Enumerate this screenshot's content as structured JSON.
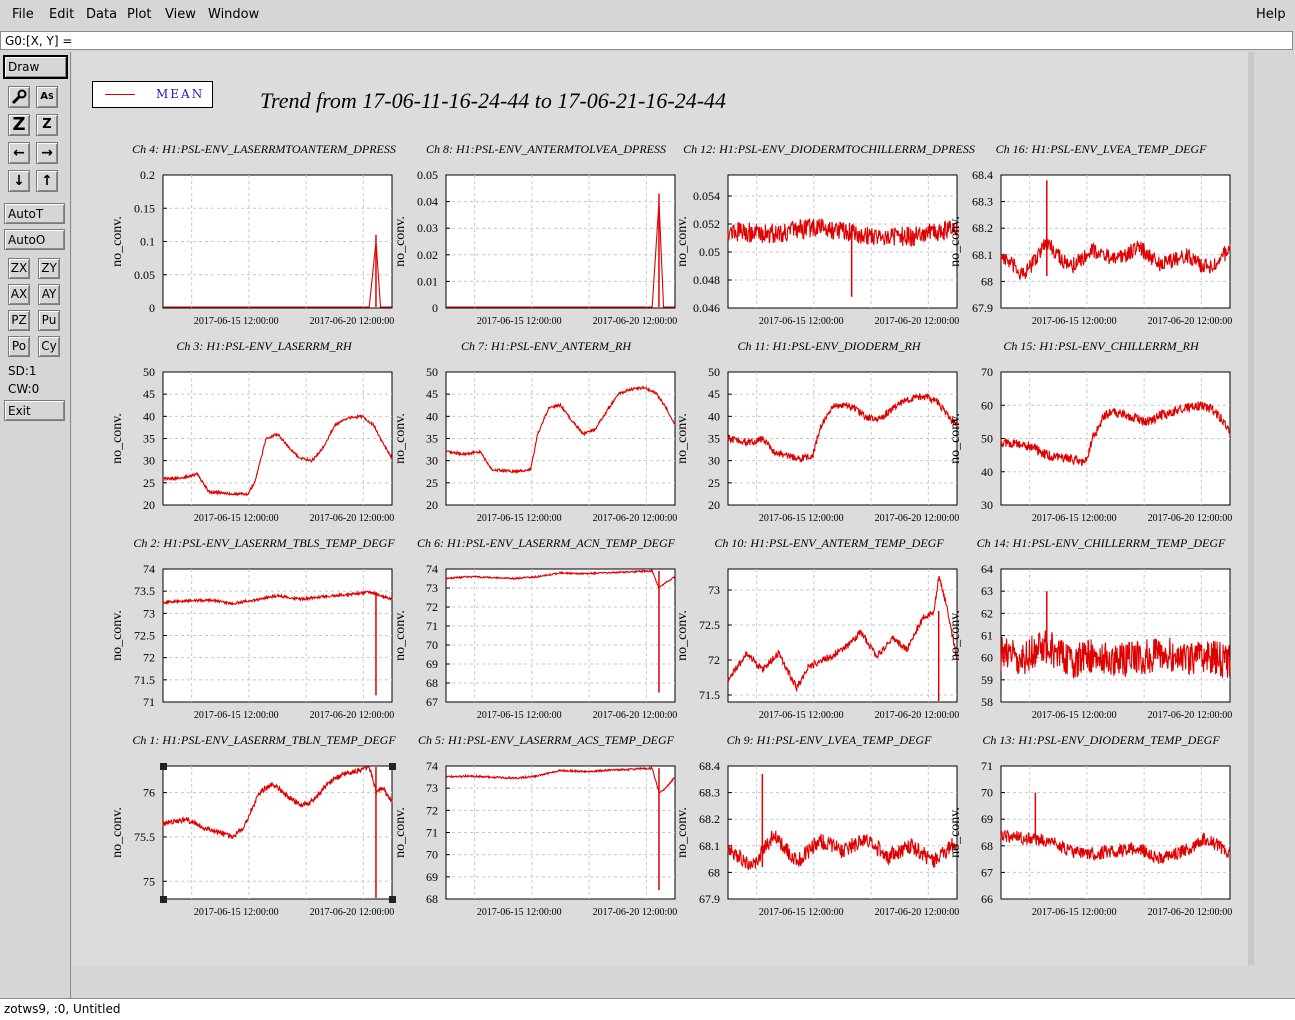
{
  "menu": {
    "items": [
      {
        "label": "File"
      },
      {
        "label": "Edit"
      },
      {
        "label": "Data"
      },
      {
        "label": "Plot"
      },
      {
        "label": "View"
      },
      {
        "label": "Window"
      }
    ],
    "help": "Help"
  },
  "coord_readout": "G0:[X, Y] =",
  "toolbar": {
    "draw": "Draw",
    "icon_names": [
      "wrench-icon",
      "text-size-icon",
      "zoom-z-large-icon",
      "zoom-z-small-icon",
      "arrow-left-icon",
      "arrow-right-icon",
      "arrow-down-icon",
      "arrow-up-icon"
    ],
    "autot": "AutoT",
    "autoo": "AutoO",
    "pairs": [
      [
        "ZX",
        "ZY"
      ],
      [
        "AX",
        "AY"
      ],
      [
        "PZ",
        "Pu"
      ],
      [
        "Po",
        "Cy"
      ]
    ],
    "sd": "SD:1",
    "cw": "CW:0",
    "exit": "Exit"
  },
  "legend": {
    "label": "MEAN",
    "color": "#e00000"
  },
  "title": "Trend from 17-06-11-16-24-44 to 17-06-21-16-24-44",
  "status": "zotws9, :0, Untitled",
  "chart_data": [
    {
      "type": "line",
      "title": "Ch 4: H1:PSL-ENV_LASERRMTOANTERM_DPRESS",
      "ylabel": "no_conv.",
      "yticks": [
        "0",
        "0.05",
        "0.1",
        "0.15",
        "0.2"
      ],
      "ylim": [
        0,
        0.2
      ],
      "xticks": [
        "2017-06-15 12:00:00",
        "2017-06-20 12:00:00"
      ],
      "x": [
        0,
        0.6,
        0.9,
        0.93,
        0.95,
        1
      ],
      "y": [
        0,
        0,
        0,
        0.1,
        0,
        0
      ],
      "spike": {
        "x": 0.93,
        "y": 0.11
      },
      "noise": 0
    },
    {
      "type": "line",
      "title": "Ch 8: H1:PSL-ENV_ANTERMTOLVEA_DPRESS",
      "ylabel": "no_conv.",
      "yticks": [
        "0",
        "0.01",
        "0.02",
        "0.03",
        "0.04",
        "0.05"
      ],
      "ylim": [
        0,
        0.05
      ],
      "xticks": [
        "2017-06-15 12:00:00",
        "2017-06-20 12:00:00"
      ],
      "x": [
        0,
        0.6,
        0.9,
        0.93,
        0.95,
        1
      ],
      "y": [
        0,
        0,
        0,
        0.04,
        0,
        0
      ],
      "spike": {
        "x": 0.93,
        "y": 0.043
      },
      "noise": 0
    },
    {
      "type": "line",
      "title": "Ch 12: H1:PSL-ENV_DIODERMTOCHILLERRM_DPRESS",
      "ylabel": "no_conv.",
      "yticks": [
        "0.046",
        "0.048",
        "0.05",
        "0.052",
        "0.054"
      ],
      "ylim": [
        0.046,
        0.0555
      ],
      "xticks": [
        "2017-06-15 12:00:00",
        "2017-06-20 12:00:00"
      ],
      "x": [
        0,
        0.2,
        0.4,
        0.6,
        0.8,
        1
      ],
      "y": [
        0.0515,
        0.0513,
        0.0518,
        0.0512,
        0.0511,
        0.0517
      ],
      "spike": {
        "x": 0.54,
        "y": 0.0468
      },
      "noise": 0.0007
    },
    {
      "type": "line",
      "title": "Ch 16: H1:PSL-ENV_LVEA_TEMP_DEGF",
      "ylabel": "no_conv.",
      "yticks": [
        "67.9",
        "68",
        "68.1",
        "68.2",
        "68.3",
        "68.4"
      ],
      "ylim": [
        67.9,
        68.4
      ],
      "xticks": [
        "2017-06-15 12:00:00",
        "2017-06-20 12:00:00"
      ],
      "x": [
        0,
        0.1,
        0.2,
        0.3,
        0.4,
        0.5,
        0.6,
        0.7,
        0.8,
        0.9,
        1
      ],
      "y": [
        68.1,
        68.02,
        68.15,
        68.05,
        68.12,
        68.08,
        68.13,
        68.06,
        68.1,
        68.05,
        68.12
      ],
      "spike": {
        "x": 0.2,
        "y": 68.38
      },
      "noise": 0.03
    },
    {
      "type": "line",
      "title": "Ch 3: H1:PSL-ENV_LASERRM_RH",
      "ylabel": "no_conv.",
      "yticks": [
        "20",
        "25",
        "30",
        "35",
        "40",
        "45",
        "50"
      ],
      "ylim": [
        20,
        50
      ],
      "xticks": [
        "2017-06-15 12:00:00",
        "2017-06-20 12:00:00"
      ],
      "x": [
        0,
        0.08,
        0.15,
        0.2,
        0.3,
        0.37,
        0.4,
        0.45,
        0.5,
        0.55,
        0.6,
        0.65,
        0.7,
        0.75,
        0.8,
        0.87,
        0.92,
        0.96,
        1
      ],
      "y": [
        26,
        26,
        27,
        23,
        22.5,
        22.5,
        25,
        35,
        36,
        33,
        30.5,
        30,
        33,
        38,
        39.5,
        40,
        38,
        34,
        30.5
      ],
      "noise": 0.3
    },
    {
      "type": "line",
      "title": "Ch 7: H1:PSL-ENV_ANTERM_RH",
      "ylabel": "no_conv.",
      "yticks": [
        "20",
        "25",
        "30",
        "35",
        "40",
        "45",
        "50"
      ],
      "ylim": [
        20,
        50
      ],
      "xticks": [
        "2017-06-15 12:00:00",
        "2017-06-20 12:00:00"
      ],
      "x": [
        0,
        0.08,
        0.15,
        0.2,
        0.3,
        0.37,
        0.4,
        0.45,
        0.5,
        0.55,
        0.6,
        0.65,
        0.7,
        0.75,
        0.8,
        0.87,
        0.92,
        0.96,
        1
      ],
      "y": [
        32,
        31.5,
        32,
        28,
        27.5,
        28,
        36,
        42,
        42.5,
        39,
        36,
        37,
        41,
        45,
        46,
        46.5,
        45,
        42,
        38
      ],
      "noise": 0.3
    },
    {
      "type": "line",
      "title": "Ch 11: H1:PSL-ENV_DIODERM_RH",
      "ylabel": "no_conv.",
      "yticks": [
        "20",
        "25",
        "30",
        "35",
        "40",
        "45",
        "50"
      ],
      "ylim": [
        20,
        50
      ],
      "xticks": [
        "2017-06-15 12:00:00",
        "2017-06-20 12:00:00"
      ],
      "x": [
        0,
        0.1,
        0.15,
        0.2,
        0.3,
        0.37,
        0.4,
        0.45,
        0.5,
        0.55,
        0.6,
        0.65,
        0.7,
        0.75,
        0.8,
        0.87,
        0.92,
        0.96,
        1
      ],
      "y": [
        35,
        34,
        35,
        32,
        30.5,
        31,
        37,
        42,
        42.5,
        42,
        40,
        39,
        41,
        43,
        44,
        44.5,
        43,
        40,
        38
      ],
      "noise": 0.8
    },
    {
      "type": "line",
      "title": "Ch 15: H1:PSL-ENV_CHILLERRM_RH",
      "ylabel": "no_conv.",
      "yticks": [
        "30",
        "40",
        "50",
        "60",
        "70"
      ],
      "ylim": [
        30,
        70
      ],
      "xticks": [
        "2017-06-15 12:00:00",
        "2017-06-20 12:00:00"
      ],
      "x": [
        0,
        0.1,
        0.15,
        0.2,
        0.3,
        0.37,
        0.4,
        0.45,
        0.5,
        0.55,
        0.6,
        0.65,
        0.7,
        0.75,
        0.8,
        0.87,
        0.92,
        0.96,
        1
      ],
      "y": [
        49,
        48,
        47,
        45,
        44,
        43,
        50,
        57,
        58,
        57,
        56,
        55,
        57,
        58,
        59,
        60,
        59,
        56,
        52
      ],
      "noise": 1.5
    },
    {
      "type": "line",
      "title": "Ch 2: H1:PSL-ENV_LASERRM_TBLS_TEMP_DEGF",
      "ylabel": "no_conv.",
      "yticks": [
        "71",
        "71.5",
        "72",
        "72.5",
        "73",
        "73.5",
        "74"
      ],
      "ylim": [
        71,
        74
      ],
      "xticks": [
        "2017-06-15 12:00:00",
        "2017-06-20 12:00:00"
      ],
      "x": [
        0,
        0.1,
        0.2,
        0.3,
        0.4,
        0.5,
        0.6,
        0.7,
        0.8,
        0.9,
        0.95,
        1
      ],
      "y": [
        73.25,
        73.28,
        73.3,
        73.22,
        73.3,
        73.4,
        73.32,
        73.38,
        73.42,
        73.48,
        73.4,
        73.32
      ],
      "spike": {
        "x": 0.93,
        "y": 71.15
      },
      "noise": 0.03
    },
    {
      "type": "line",
      "title": "Ch 6: H1:PSL-ENV_LASERRM_ACN_TEMP_DEGF",
      "ylabel": "no_conv.",
      "yticks": [
        "67",
        "68",
        "69",
        "70",
        "71",
        "72",
        "73",
        "74"
      ],
      "ylim": [
        67,
        74
      ],
      "xticks": [
        "2017-06-15 12:00:00",
        "2017-06-20 12:00:00"
      ],
      "x": [
        0,
        0.1,
        0.2,
        0.3,
        0.4,
        0.5,
        0.6,
        0.7,
        0.8,
        0.9,
        0.93,
        0.96,
        1
      ],
      "y": [
        73.5,
        73.6,
        73.55,
        73.5,
        73.6,
        73.8,
        73.75,
        73.8,
        73.85,
        73.9,
        73.0,
        73.3,
        73.6
      ],
      "spike": {
        "x": 0.93,
        "y": 67.5
      },
      "noise": 0.04
    },
    {
      "type": "line",
      "title": "Ch 10: H1:PSL-ENV_ANTERM_TEMP_DEGF",
      "ylabel": "no_conv.",
      "yticks": [
        "71.5",
        "72",
        "72.5",
        "73"
      ],
      "ylim": [
        71.4,
        73.3
      ],
      "xticks": [
        "2017-06-15 12:00:00",
        "2017-06-20 12:00:00"
      ],
      "x": [
        0,
        0.08,
        0.15,
        0.22,
        0.3,
        0.35,
        0.45,
        0.52,
        0.58,
        0.65,
        0.72,
        0.78,
        0.85,
        0.9,
        0.92,
        0.96,
        1
      ],
      "y": [
        71.7,
        72.1,
        71.85,
        72.1,
        71.6,
        71.9,
        72.05,
        72.2,
        72.4,
        72.05,
        72.3,
        72.15,
        72.6,
        72.7,
        73.2,
        72.7,
        72.0
      ],
      "spike": {
        "x": 0.92,
        "y": 71.4
      },
      "noise": 0.05
    },
    {
      "type": "line",
      "title": "Ch 14: H1:PSL-ENV_CHILLERRM_TEMP_DEGF",
      "ylabel": "no_conv.",
      "yticks": [
        "58",
        "59",
        "60",
        "61",
        "62",
        "63",
        "64"
      ],
      "ylim": [
        58,
        64
      ],
      "xticks": [
        "2017-06-15 12:00:00",
        "2017-06-20 12:00:00"
      ],
      "x": [
        0,
        0.1,
        0.2,
        0.3,
        0.4,
        0.5,
        0.6,
        0.7,
        0.8,
        0.9,
        1
      ],
      "y": [
        60.2,
        60.0,
        60.5,
        59.8,
        60.1,
        59.9,
        60.0,
        60.2,
        60.0,
        60.1,
        59.8
      ],
      "spike": {
        "x": 0.2,
        "y": 63.0
      },
      "noise": 0.8
    },
    {
      "type": "line",
      "title": "Ch 1: H1:PSL-ENV_LASERRM_TBLN_TEMP_DEGF",
      "ylabel": "no_conv.",
      "yticks": [
        "75",
        "75.5",
        "76"
      ],
      "ylim": [
        74.8,
        76.3
      ],
      "xticks": [
        "2017-06-15 12:00:00",
        "2017-06-20 12:00:00"
      ],
      "x": [
        0,
        0.1,
        0.18,
        0.25,
        0.3,
        0.35,
        0.42,
        0.48,
        0.55,
        0.6,
        0.65,
        0.72,
        0.78,
        0.85,
        0.9,
        0.93,
        0.96,
        1
      ],
      "y": [
        75.65,
        75.7,
        75.6,
        75.55,
        75.5,
        75.6,
        76.0,
        76.1,
        75.95,
        75.85,
        75.9,
        76.1,
        76.2,
        76.25,
        76.3,
        76.0,
        76.05,
        75.9
      ],
      "spike": {
        "x": 0.93,
        "y": 74.8
      },
      "noise": 0.03
    },
    {
      "type": "line",
      "title": "Ch 5: H1:PSL-ENV_LASERRM_ACS_TEMP_DEGF",
      "ylabel": "no_conv.",
      "yticks": [
        "68",
        "69",
        "70",
        "71",
        "72",
        "73",
        "74"
      ],
      "ylim": [
        68,
        74
      ],
      "xticks": [
        "2017-06-15 12:00:00",
        "2017-06-20 12:00:00"
      ],
      "x": [
        0,
        0.1,
        0.2,
        0.3,
        0.4,
        0.5,
        0.6,
        0.7,
        0.8,
        0.9,
        0.93,
        0.96,
        1
      ],
      "y": [
        73.5,
        73.55,
        73.5,
        73.45,
        73.55,
        73.8,
        73.75,
        73.8,
        73.85,
        73.9,
        72.8,
        73.0,
        73.5
      ],
      "spike": {
        "x": 0.93,
        "y": 68.4
      },
      "noise": 0.04
    },
    {
      "type": "line",
      "title": "Ch 9: H1:PSL-ENV_LVEA_TEMP_DEGF",
      "ylabel": "no_conv.",
      "yticks": [
        "67.9",
        "68",
        "68.1",
        "68.2",
        "68.3",
        "68.4"
      ],
      "ylim": [
        67.9,
        68.4
      ],
      "xticks": [
        "2017-06-15 12:00:00",
        "2017-06-20 12:00:00"
      ],
      "x": [
        0,
        0.1,
        0.2,
        0.3,
        0.4,
        0.5,
        0.6,
        0.7,
        0.8,
        0.9,
        1
      ],
      "y": [
        68.1,
        68.02,
        68.14,
        68.04,
        68.12,
        68.08,
        68.13,
        68.06,
        68.1,
        68.04,
        68.12
      ],
      "spike": {
        "x": 0.15,
        "y": 68.37
      },
      "noise": 0.03
    },
    {
      "type": "line",
      "title": "Ch 13: H1:PSL-ENV_DIODERM_TEMP_DEGF",
      "ylabel": "no_conv.",
      "yticks": [
        "66",
        "67",
        "68",
        "69",
        "70",
        "71"
      ],
      "ylim": [
        66,
        71
      ],
      "xticks": [
        "2017-06-15 12:00:00",
        "2017-06-20 12:00:00"
      ],
      "x": [
        0,
        0.1,
        0.2,
        0.3,
        0.4,
        0.5,
        0.6,
        0.7,
        0.8,
        0.9,
        1
      ],
      "y": [
        68.4,
        68.3,
        68.2,
        67.8,
        67.7,
        67.8,
        67.9,
        67.5,
        67.8,
        68.3,
        67.7
      ],
      "spike": {
        "x": 0.15,
        "y": 70.0
      },
      "noise": 0.25
    }
  ]
}
